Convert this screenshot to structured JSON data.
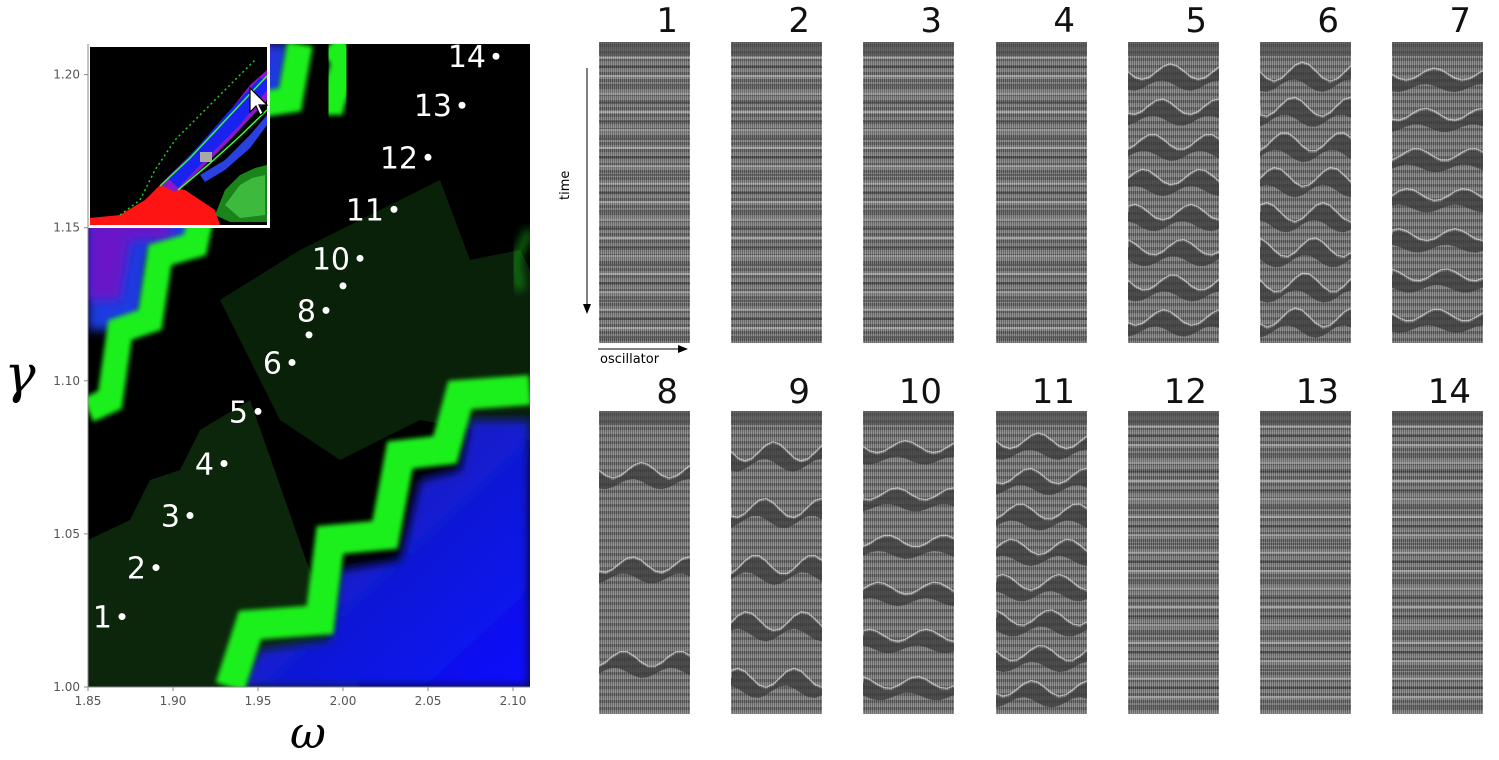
{
  "main_plot": {
    "xlabel": "ω",
    "ylabel": "γ",
    "x_ticks": [
      "1.85",
      "1.90",
      "1.95",
      "2.00",
      "2.05",
      "2.10"
    ],
    "y_ticks": [
      "1.00",
      "1.05",
      "1.10",
      "1.15",
      "1.20"
    ],
    "xlim": [
      1.85,
      2.11
    ],
    "ylim": [
      1.0,
      1.21
    ],
    "colors": {
      "black": "#000000",
      "dark_green": "#0a2a0a",
      "green": "#22ee22",
      "blue": "#0a10f0",
      "purple": "#7a12d0",
      "red": "#ff1010"
    },
    "points": [
      {
        "label": "1",
        "omega": 1.87,
        "gamma": 1.023
      },
      {
        "label": "2",
        "omega": 1.89,
        "gamma": 1.039
      },
      {
        "label": "3",
        "omega": 1.91,
        "gamma": 1.056
      },
      {
        "label": "4",
        "omega": 1.93,
        "gamma": 1.073
      },
      {
        "label": "5",
        "omega": 1.95,
        "gamma": 1.09
      },
      {
        "label": "6",
        "omega": 1.97,
        "gamma": 1.106
      },
      {
        "label": "",
        "omega": 1.98,
        "gamma": 1.115
      },
      {
        "label": "8",
        "omega": 1.99,
        "gamma": 1.123
      },
      {
        "label": "",
        "omega": 2.0,
        "gamma": 1.131
      },
      {
        "label": "10",
        "omega": 2.01,
        "gamma": 1.14
      },
      {
        "label": "11",
        "omega": 2.03,
        "gamma": 1.156
      },
      {
        "label": "12",
        "omega": 2.05,
        "gamma": 1.173
      },
      {
        "label": "13",
        "omega": 2.07,
        "gamma": 1.19
      },
      {
        "label": "14",
        "omega": 2.09,
        "gamma": 1.206
      }
    ]
  },
  "inset": {
    "icon": "cursor-arrow-icon"
  },
  "panels_axes": {
    "time_label": "time",
    "oscillator_label": "oscillator"
  },
  "panels": [
    {
      "label": "1",
      "bands": 0
    },
    {
      "label": "2",
      "bands": 0
    },
    {
      "label": "3",
      "bands": 0
    },
    {
      "label": "4",
      "bands": 0
    },
    {
      "label": "5",
      "bands": 8
    },
    {
      "label": "6",
      "bands": 8
    },
    {
      "label": "7",
      "bands": 7
    },
    {
      "label": "8",
      "bands": 3
    },
    {
      "label": "9",
      "bands": 5
    },
    {
      "label": "10",
      "bands": 6
    },
    {
      "label": "11",
      "bands": 8
    },
    {
      "label": "12",
      "bands": 0
    },
    {
      "label": "13",
      "bands": 0
    },
    {
      "label": "14",
      "bands": 0
    }
  ]
}
